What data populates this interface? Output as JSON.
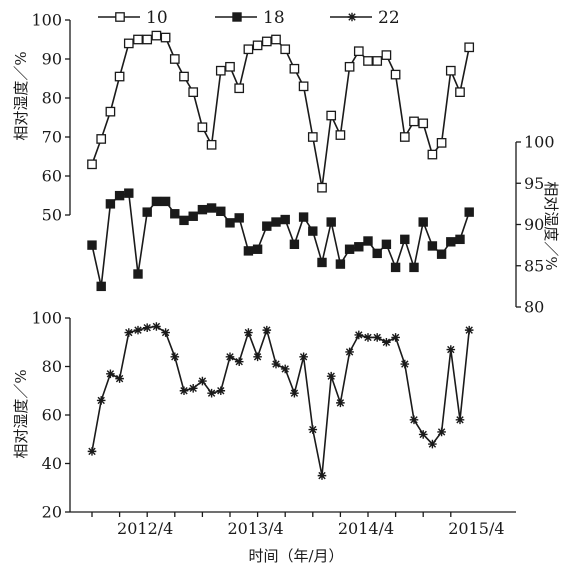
{
  "chart_data": [
    {
      "type": "line",
      "panel": "top-left",
      "ylabel": "相对湿度／%",
      "ylim": [
        50,
        100
      ],
      "yticks": [
        "50",
        "60",
        "70",
        "80",
        "90",
        "100"
      ],
      "y_axis_side": "left",
      "series": [
        {
          "name": "10",
          "marker": "open-square",
          "color": "#1a1a1a",
          "values": [
            63,
            69.5,
            76.5,
            85.5,
            94,
            95,
            95,
            96,
            95.5,
            90,
            85.5,
            81.5,
            72.5,
            68,
            87,
            88,
            82.5,
            92.5,
            93.5,
            94.5,
            95,
            92.5,
            87.5,
            83,
            70,
            57,
            75.5,
            70.5,
            88,
            92,
            89.5,
            89.5,
            91,
            86,
            70,
            74,
            73.5,
            65.5,
            68.5,
            87,
            81.5,
            93
          ]
        }
      ]
    },
    {
      "type": "line",
      "panel": "middle-right",
      "ylabel": "相对湿度／%",
      "ylim": [
        80,
        100
      ],
      "yticks": [
        "80",
        "85",
        "90",
        "95",
        "100"
      ],
      "y_axis_side": "right",
      "series": [
        {
          "name": "18",
          "marker": "filled-square",
          "color": "#1a1a1a",
          "values": [
            87.5,
            82.5,
            92.5,
            93.5,
            93.8,
            84,
            91.5,
            92.8,
            92.8,
            91.3,
            90.5,
            91,
            91.8,
            92,
            91.6,
            90.2,
            90.8,
            86.8,
            87,
            89.8,
            90.3,
            90.6,
            87.6,
            90.9,
            89.2,
            85.4,
            90.3,
            85.2,
            87,
            87.3,
            88,
            86.5,
            87.6,
            84.8,
            88.2,
            84.8,
            90.3,
            87.4,
            86.4,
            87.9,
            88.2,
            91.5
          ]
        }
      ]
    },
    {
      "type": "line",
      "panel": "bottom",
      "ylabel": "相对湿度／%",
      "ylim": [
        20,
        100
      ],
      "yticks": [
        "20",
        "40",
        "60",
        "80",
        "100"
      ],
      "y_axis_side": "left",
      "xlabel": "时间（年/月）",
      "xticks": [
        "2012/4",
        "2013/4",
        "2014/4",
        "2015/4"
      ],
      "series": [
        {
          "name": "22",
          "marker": "asterisk",
          "color": "#1a1a1a",
          "values": [
            45,
            66,
            77,
            75,
            94,
            95,
            96,
            96.5,
            94,
            84,
            70,
            71,
            74,
            69,
            70,
            84,
            82,
            94,
            84,
            95,
            81,
            79,
            69,
            84,
            54,
            35,
            76,
            65,
            86,
            93,
            92,
            92,
            90,
            92,
            81,
            58,
            52,
            48,
            53,
            87,
            58,
            95
          ]
        }
      ]
    }
  ],
  "legend": {
    "placement": "top",
    "entries": [
      {
        "label": "10",
        "marker": "open-square"
      },
      {
        "label": "18",
        "marker": "filled-square"
      },
      {
        "label": "22",
        "marker": "asterisk"
      }
    ]
  }
}
